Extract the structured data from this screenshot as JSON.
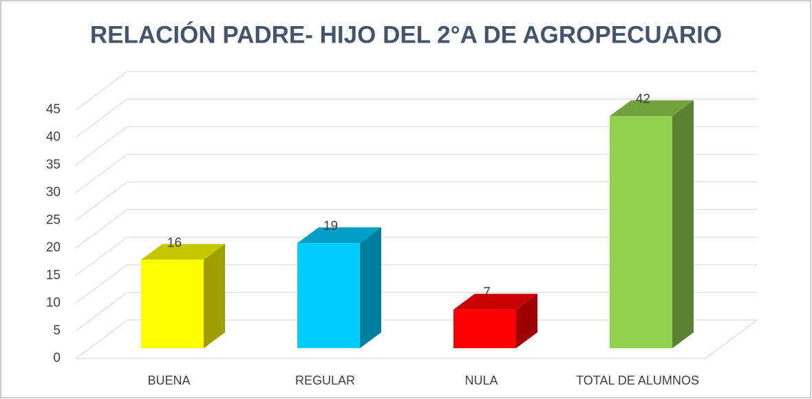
{
  "chart_data": {
    "type": "bar3d",
    "title": "RELACIÓN PADRE- HIJO DEL  2°A DE AGROPECUARIO",
    "categories": [
      "BUENA",
      "REGULAR",
      "NULA",
      "TOTAL DE ALUMNOS"
    ],
    "values": [
      16,
      19,
      7,
      42
    ],
    "colors": [
      "#ffff00",
      "#00ccff",
      "#ff0000",
      "#92d050"
    ],
    "ylim": [
      0,
      45
    ],
    "yticks": [
      0,
      5,
      10,
      15,
      20,
      25,
      30,
      35,
      40,
      45
    ],
    "grid": true
  }
}
